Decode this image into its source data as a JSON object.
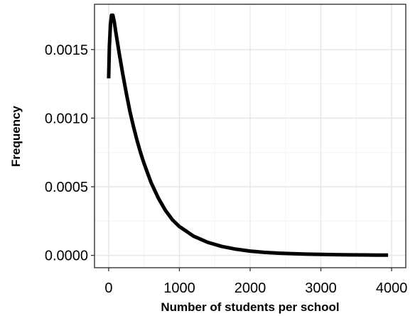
{
  "chart_data": {
    "type": "line",
    "xlabel": "Number of students per school",
    "ylabel": "Frequency",
    "xlim": [
      -200,
      4200
    ],
    "ylim": [
      -9e-05,
      0.00183
    ],
    "x_ticks": [
      0,
      1000,
      2000,
      3000,
      4000
    ],
    "x_tick_labels": [
      "0",
      "1000",
      "2000",
      "3000",
      "4000"
    ],
    "y_ticks": [
      0,
      0.0005,
      0.001,
      0.0015
    ],
    "y_tick_labels": [
      "0.0000",
      "0.0005",
      "0.0010",
      "0.0015"
    ],
    "x_minor_grid": [
      500,
      1500,
      2500,
      3500
    ],
    "y_minor_grid": [
      0.00025,
      0.00075,
      0.00125
    ],
    "grid": true,
    "series": [
      {
        "color": "#000000",
        "x": [
          0,
          10,
          25,
          40,
          60,
          80,
          100,
          150,
          200,
          250,
          300,
          350,
          400,
          450,
          500,
          600,
          700,
          800,
          900,
          1000,
          1200,
          1400,
          1600,
          1800,
          2000,
          2200,
          2400,
          2600,
          2800,
          3000,
          3200,
          3400,
          3600,
          3800,
          3950
        ],
        "y": [
          0.00129,
          0.00152,
          0.00168,
          0.00175,
          0.00175,
          0.0017,
          0.00163,
          0.00147,
          0.00132,
          0.00118,
          0.00105,
          0.00094,
          0.00084,
          0.00075,
          0.00067,
          0.00053,
          0.00042,
          0.00033,
          0.00026,
          0.00021,
          0.00014,
          9.5e-05,
          6.5e-05,
          4.5e-05,
          3.1e-05,
          2.2e-05,
          1.6e-05,
          1.2e-05,
          9e-06,
          7e-06,
          5e-06,
          4e-06,
          3e-06,
          2e-06,
          2e-06
        ]
      }
    ]
  }
}
